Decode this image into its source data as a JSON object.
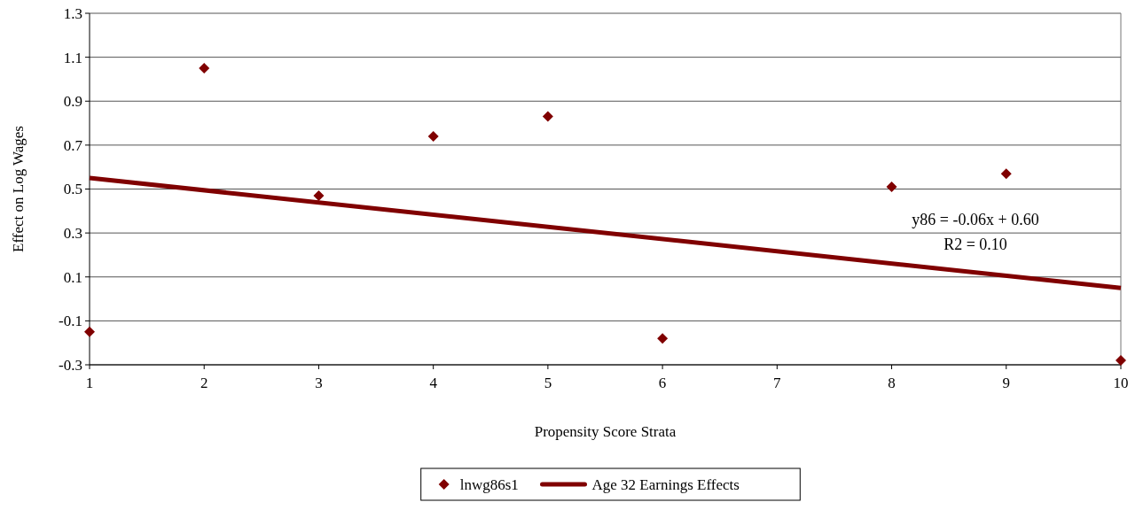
{
  "chart_data": {
    "type": "scatter",
    "xlabel": "Propensity Score Strata",
    "ylabel": "Effect on Log Wages",
    "xlim": [
      1,
      10
    ],
    "xticks": [
      1,
      2,
      3,
      4,
      5,
      6,
      7,
      8,
      9,
      10
    ],
    "ylim": [
      -0.3,
      1.3
    ],
    "yticks": [
      {
        "value": -0.3,
        "label": "-0.3"
      },
      {
        "value": -0.1,
        "label": "-0.1"
      },
      {
        "value": 0.1,
        "label": "0.1"
      },
      {
        "value": 0.3,
        "label": "0.3"
      },
      {
        "value": 0.5,
        "label": "0.5"
      },
      {
        "value": 0.7,
        "label": "0.7"
      },
      {
        "value": 0.9,
        "label": "0.9"
      },
      {
        "value": 1.1,
        "label": "1.1"
      },
      {
        "value": 1.3,
        "label": "1.3"
      }
    ],
    "grid": "y",
    "legend": "bottom",
    "series": [
      {
        "name": "lnwg86s1",
        "marker": "diamond",
        "color": "#800000",
        "x": [
          1,
          2,
          3,
          4,
          5,
          6,
          8,
          9,
          10
        ],
        "values": [
          -0.15,
          1.05,
          0.47,
          0.74,
          0.83,
          -0.18,
          0.51,
          0.57,
          -0.28
        ]
      },
      {
        "name": "Age 32 Earnings Effects",
        "type": "line",
        "marker": "none",
        "color": "#800000",
        "x": [
          1,
          10
        ],
        "values": [
          0.55,
          0.05
        ]
      }
    ],
    "annotations": [
      "y86 = -0.06x + 0.60",
      "R2 = 0.10"
    ]
  }
}
